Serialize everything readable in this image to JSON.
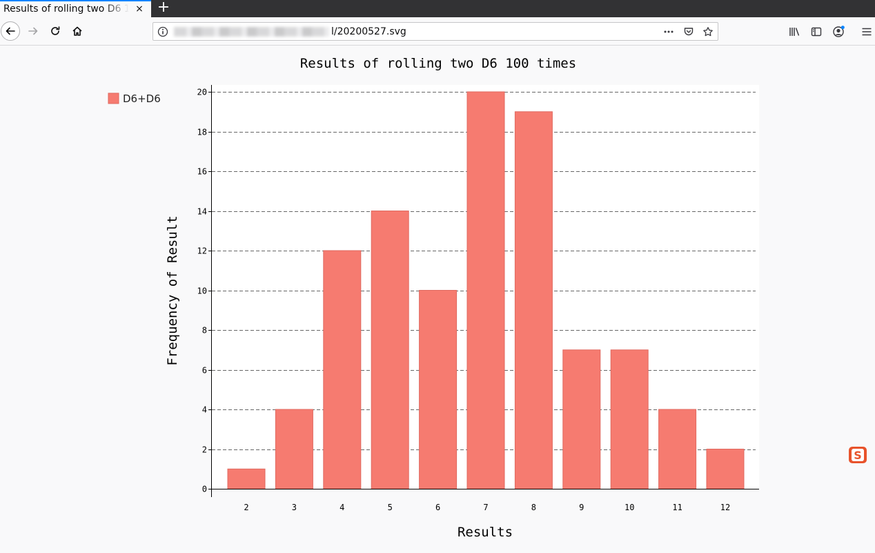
{
  "browser": {
    "tab_title": "Results of rolling two D6 100 times",
    "tab_close": "×",
    "new_tab": "+",
    "url_visible": "l/20200527.svg",
    "accent": "#0a84ff"
  },
  "icons": {
    "back": "back-arrow-icon",
    "forward": "forward-arrow-icon",
    "reload": "reload-icon",
    "home": "home-icon",
    "site_info": "info-icon",
    "page_actions": "more-dots-icon",
    "pocket": "pocket-icon",
    "bookmark": "star-icon",
    "library": "library-icon",
    "sidebar": "sidebar-icon",
    "account": "account-icon",
    "menu": "hamburger-menu-icon",
    "ime": "sogou-ime-icon"
  },
  "chart_data": {
    "type": "bar",
    "title": "Results of rolling two D6 100 times",
    "xlabel": "Results",
    "ylabel": "Frequency of Result",
    "categories": [
      "2",
      "3",
      "4",
      "5",
      "6",
      "7",
      "8",
      "9",
      "10",
      "11",
      "12"
    ],
    "series": [
      {
        "name": "D6+D6",
        "values": [
          1,
          4,
          12,
          14,
          10,
          20,
          19,
          7,
          7,
          4,
          2
        ],
        "color": "#f67b70"
      }
    ],
    "ylim": [
      0,
      20
    ],
    "yticks": [
      "0",
      "2",
      "4",
      "6",
      "8",
      "10",
      "12",
      "14",
      "16",
      "18",
      "20"
    ],
    "grid": true,
    "legend_position": "top-left"
  }
}
